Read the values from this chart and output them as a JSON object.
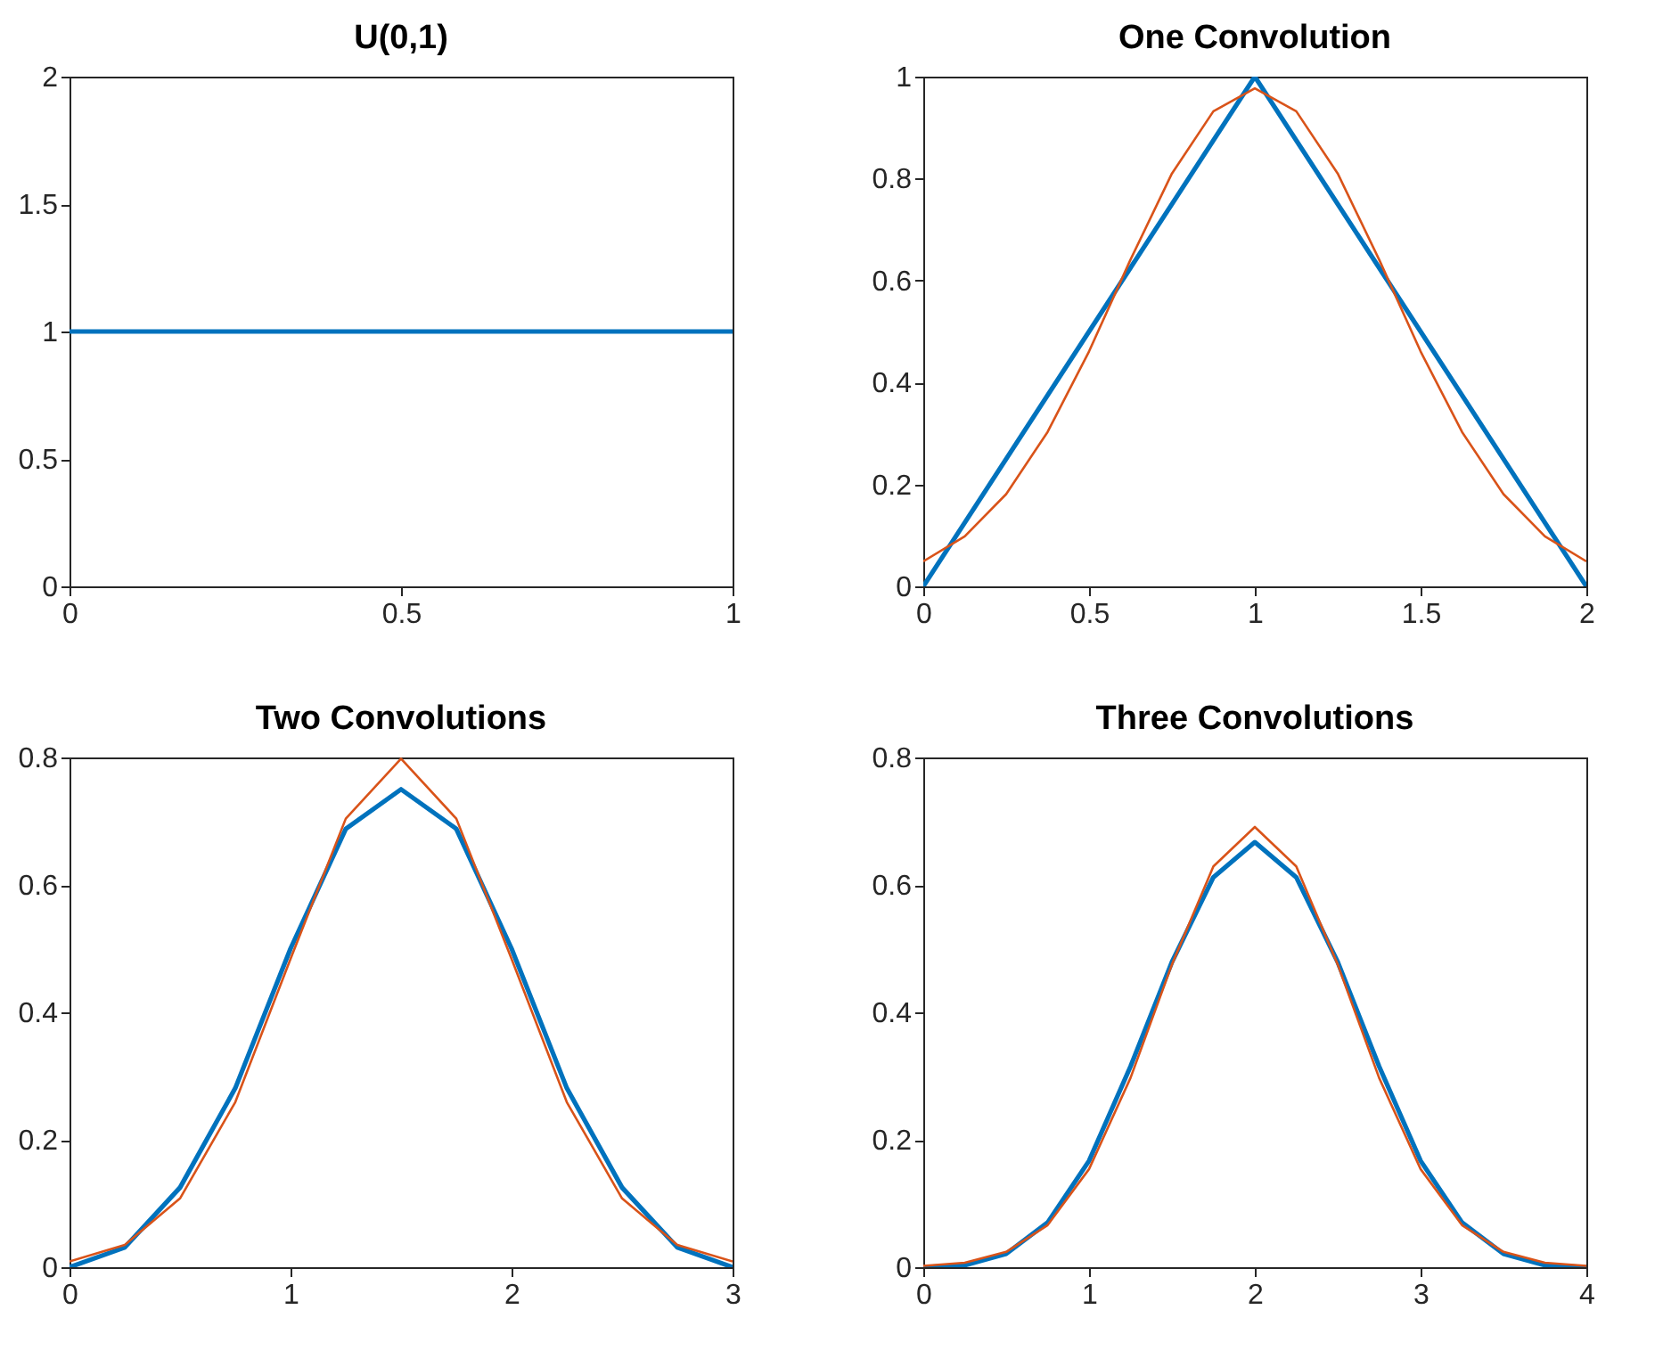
{
  "chart_data": [
    {
      "type": "line",
      "title": "U(0,1)",
      "xlim": [
        0,
        1
      ],
      "ylim": [
        0,
        2
      ],
      "xticks": [
        0,
        0.5,
        1
      ],
      "yticks": [
        0,
        0.5,
        1,
        1.5,
        2
      ],
      "series": [
        {
          "color": "#0072bd",
          "x": [
            0,
            1
          ],
          "values": [
            1,
            1
          ]
        }
      ]
    },
    {
      "type": "line",
      "title": "One Convolution",
      "xlim": [
        0,
        2
      ],
      "ylim": [
        0,
        1
      ],
      "xticks": [
        0,
        0.5,
        1,
        1.5,
        2
      ],
      "yticks": [
        0,
        0.2,
        0.4,
        0.6,
        0.8,
        1
      ],
      "series": [
        {
          "color": "#0072bd",
          "x": [
            0,
            1,
            2
          ],
          "values": [
            0,
            1,
            0
          ]
        },
        {
          "color": "#d95319",
          "x": [
            0,
            0.125,
            0.25,
            0.375,
            0.5,
            0.625,
            0.75,
            0.875,
            1,
            1.125,
            1.25,
            1.375,
            1.5,
            1.625,
            1.75,
            1.875,
            2
          ],
          "values": [
            0.049,
            0.098,
            0.181,
            0.303,
            0.461,
            0.641,
            0.81,
            0.932,
            0.977,
            0.932,
            0.81,
            0.641,
            0.461,
            0.303,
            0.181,
            0.098,
            0.049
          ]
        }
      ]
    },
    {
      "type": "line",
      "title": "Two Convolutions",
      "xlim": [
        0,
        3
      ],
      "ylim": [
        0,
        0.8
      ],
      "xticks": [
        0,
        1,
        2,
        3
      ],
      "yticks": [
        0,
        0.2,
        0.4,
        0.6,
        0.8
      ],
      "series": [
        {
          "color": "#0072bd",
          "x": [
            0,
            0.25,
            0.5,
            0.75,
            1,
            1.25,
            1.5,
            1.75,
            2,
            2.25,
            2.5,
            2.75,
            3
          ],
          "values": [
            0,
            0.031,
            0.125,
            0.281,
            0.5,
            0.688,
            0.75,
            0.688,
            0.5,
            0.281,
            0.125,
            0.031,
            0
          ]
        },
        {
          "color": "#d95319",
          "x": [
            0,
            0.25,
            0.5,
            0.75,
            1,
            1.25,
            1.5,
            1.75,
            2,
            2.25,
            2.5,
            2.75,
            3
          ],
          "values": [
            0.009,
            0.035,
            0.108,
            0.259,
            0.484,
            0.704,
            0.798,
            0.704,
            0.484,
            0.259,
            0.108,
            0.035,
            0.009
          ]
        }
      ]
    },
    {
      "type": "line",
      "title": "Three Convolutions",
      "xlim": [
        0,
        4
      ],
      "ylim": [
        0,
        0.8
      ],
      "xticks": [
        0,
        1,
        2,
        3,
        4
      ],
      "yticks": [
        0,
        0.2,
        0.4,
        0.6,
        0.8
      ],
      "series": [
        {
          "color": "#0072bd",
          "x": [
            0,
            0.25,
            0.5,
            0.75,
            1,
            1.25,
            1.5,
            1.75,
            2,
            2.25,
            2.5,
            2.75,
            3,
            3.25,
            3.5,
            3.75,
            4
          ],
          "values": [
            0,
            0.003,
            0.021,
            0.07,
            0.167,
            0.315,
            0.479,
            0.612,
            0.667,
            0.612,
            0.479,
            0.315,
            0.167,
            0.07,
            0.021,
            0.003,
            0
          ]
        },
        {
          "color": "#d95319",
          "x": [
            0,
            0.25,
            0.5,
            0.75,
            1,
            1.25,
            1.5,
            1.75,
            2,
            2.25,
            2.5,
            2.75,
            3,
            3.25,
            3.5,
            3.75,
            4
          ],
          "values": [
            0.002,
            0.007,
            0.024,
            0.066,
            0.154,
            0.297,
            0.475,
            0.629,
            0.691,
            0.629,
            0.475,
            0.297,
            0.154,
            0.066,
            0.024,
            0.007,
            0.002
          ]
        }
      ]
    }
  ]
}
